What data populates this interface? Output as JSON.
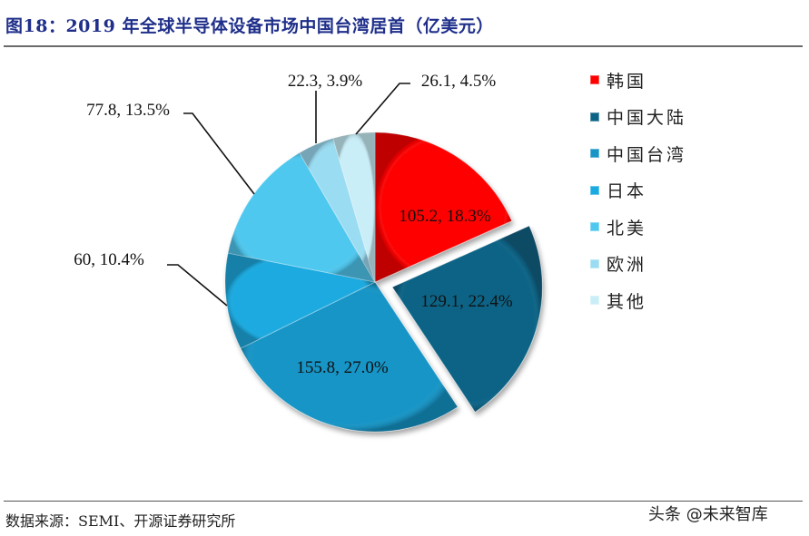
{
  "header": {
    "title": "图18：2019 年全球半导体设备市场中国台湾居首（亿美元）"
  },
  "footer": {
    "source": "数据来源：SEMI、开源证券研究所",
    "watermark": "头条 @未来智库"
  },
  "legend": {
    "items": [
      {
        "label": "韩国",
        "color": "#ff0000"
      },
      {
        "label": "中国大陆",
        "color": "#0b6386"
      },
      {
        "label": "中国台湾",
        "color": "#1795c6"
      },
      {
        "label": "日本",
        "color": "#1aaae0"
      },
      {
        "label": "北美",
        "color": "#4fc8ef"
      },
      {
        "label": "欧洲",
        "color": "#9adcf2"
      },
      {
        "label": "其他",
        "color": "#c9eef8"
      }
    ]
  },
  "chart_data": {
    "type": "pie",
    "title": "2019 年全球半导体设备市场中国台湾居首（亿美元）",
    "unit": "亿美元",
    "categories": [
      "韩国",
      "中国大陆",
      "中国台湾",
      "日本",
      "北美",
      "欧洲",
      "其他"
    ],
    "values": [
      105.2,
      129.1,
      155.8,
      60,
      77.8,
      22.3,
      26.1
    ],
    "percentages": [
      18.3,
      22.4,
      27.0,
      10.4,
      13.5,
      3.9,
      4.5
    ],
    "data_labels": [
      "105.2, 18.3%",
      "129.1, 22.4%",
      "155.8, 27.0%",
      "60, 10.4%",
      "77.8, 13.5%",
      "22.3, 3.9%",
      "26.1, 4.5%"
    ],
    "colors": [
      "#ff0000",
      "#0b6386",
      "#1795c6",
      "#1aaae0",
      "#4fc8ef",
      "#9adcf2",
      "#c9eef8"
    ],
    "exploded": [
      "中国大陆"
    ],
    "start_angle": "12 o'clock, clockwise",
    "legend_position": "right"
  }
}
